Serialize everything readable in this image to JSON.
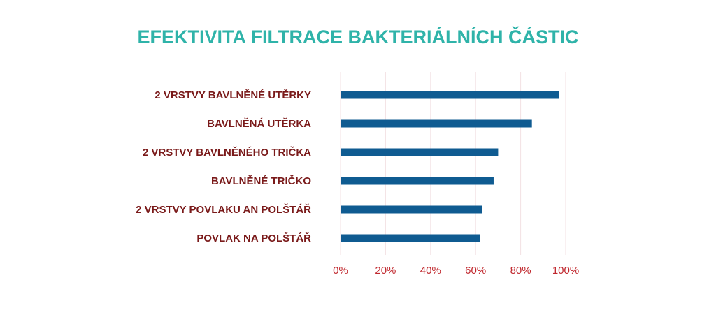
{
  "chart_data": {
    "type": "bar",
    "orientation": "horizontal",
    "title": "EFEKTIVITA FILTRACE BAKTERIÁLNÍCH ČÁSTIC",
    "xlabel": "",
    "ylabel": "",
    "categories": [
      "2 VRSTVY BAVLNĚNÉ UTĚRKY",
      "BAVLNĚNÁ UTĚRKA",
      "2 VRSTVY BAVLNĚNÉHO TRIČKA",
      "BAVLNĚNÉ TRIČKO",
      "2 VRSTVY POVLAKU AN POLŠTÁŘ",
      "POVLAK NA POLŠTÁŘ"
    ],
    "values": [
      0.97,
      0.85,
      0.7,
      0.68,
      0.63,
      0.62
    ],
    "xlim": [
      0,
      1
    ],
    "xticks": [
      "0%",
      "20%",
      "40%",
      "60%",
      "80%",
      "100%"
    ],
    "grid": "vertical",
    "colors": {
      "title": "#2fb3a9",
      "bar": "#0f5b91",
      "category_label": "#7a1a1a",
      "tick_label": "#c0272d",
      "grid": "#f3e1e3"
    }
  }
}
